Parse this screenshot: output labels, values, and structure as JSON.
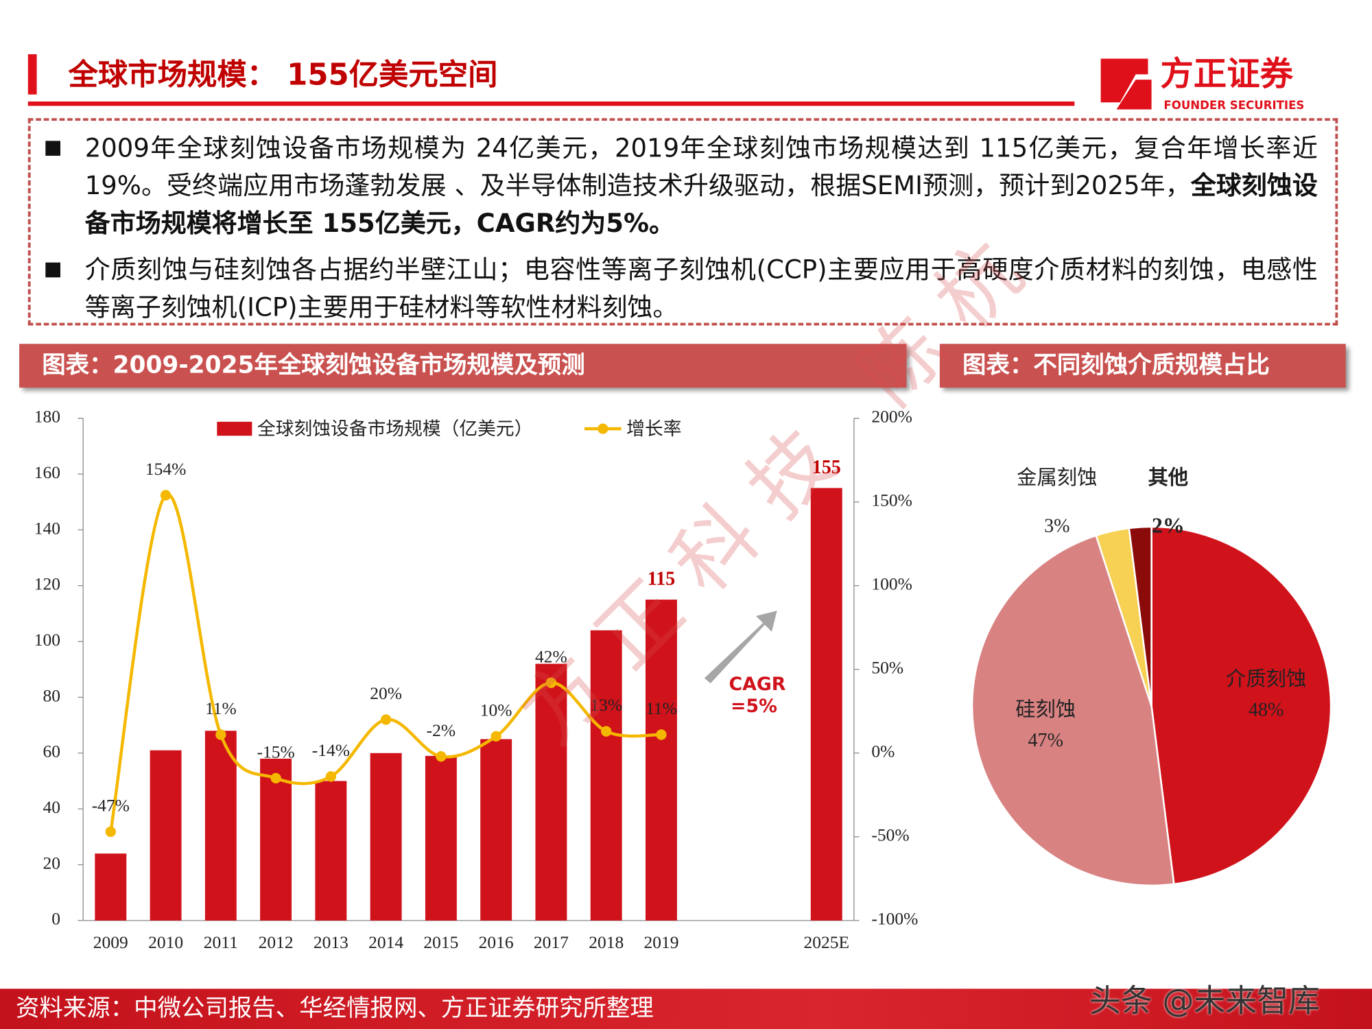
{
  "header": {
    "title": "全球市场规模： 155亿美元空间",
    "logo": "方正证券",
    "logo_en": "FOUNDER SECURITIES"
  },
  "bullets": [
    {
      "text": "2009年全球刻蚀设备市场规模为 24亿美元，2019年全球刻蚀市场规模达到 115亿美元，复合年增长率近19%。受终端应用市场蓬勃发展 、及半导体制造技术升级驱动，根据SEMI预测，预计到2025年，",
      "bold": "全球刻蚀设备市场规模将增长至 155亿美元，CAGR约为5%。"
    },
    {
      "text": "介质刻蚀与硅刻蚀各占据约半壁江山；电容性等离子刻蚀机(CCP)主要应用于高硬度介质材料的刻蚀，电感性等离子刻蚀机(ICP)主要用于硅材料等软性材料刻蚀。"
    }
  ],
  "chart_data": [
    {
      "type": "bar",
      "title": "图表：2009-2025年全球刻蚀设备市场规模及预测",
      "categories": [
        "2009",
        "2010",
        "2011",
        "2012",
        "2013",
        "2014",
        "2015",
        "2016",
        "2017",
        "2018",
        "2019",
        null,
        null,
        "2025E"
      ],
      "series": [
        {
          "name": "全球刻蚀设备市场规模（亿美元）",
          "type": "bar",
          "color": "#d0121b",
          "values": [
            24,
            61,
            68,
            58,
            50,
            60,
            59,
            65,
            92,
            104,
            115,
            null,
            null,
            155
          ],
          "value_labels": [
            null,
            null,
            null,
            null,
            null,
            null,
            null,
            null,
            null,
            null,
            "115",
            null,
            null,
            "155"
          ]
        },
        {
          "name": "增长率",
          "type": "line",
          "color": "#f5b800",
          "axis": "y2",
          "values": [
            -47,
            154,
            11,
            -15,
            -14,
            20,
            -2,
            10,
            42,
            13,
            11,
            null,
            null,
            null
          ],
          "value_labels": [
            "-47%",
            "154%",
            "11%",
            "-15%",
            "-14%",
            "20%",
            "-2%",
            "10%",
            "42%",
            "13%",
            "11%",
            null,
            null,
            null
          ]
        }
      ],
      "ylim": [
        0,
        180
      ],
      "yticks": [
        0,
        20,
        40,
        60,
        80,
        100,
        120,
        140,
        160,
        180
      ],
      "y2lim": [
        -100,
        200
      ],
      "y2ticks": [
        {
          "value": -100,
          "label": "-100%"
        },
        {
          "value": -50,
          "label": "-50%"
        },
        {
          "value": 0,
          "label": "0%"
        },
        {
          "value": 50,
          "label": "50%"
        },
        {
          "value": 100,
          "label": "100%"
        },
        {
          "value": 150,
          "label": "150%"
        },
        {
          "value": 200,
          "label": "200%"
        }
      ],
      "annotation": [
        "CAGR",
        "=5%"
      ],
      "legend": "top"
    },
    {
      "type": "pie",
      "title": "图表：不同刻蚀介质规模占比",
      "categories": [
        "介质刻蚀",
        "硅刻蚀",
        "金属刻蚀",
        "其他"
      ],
      "values": [
        48,
        47,
        3,
        2
      ],
      "value_labels": [
        "48%",
        "47%",
        "3%",
        "2%"
      ],
      "colors": [
        "#d0121b",
        "#d98282",
        "#f7d154",
        "#8b0a0a"
      ]
    }
  ],
  "footer": {
    "source": "资料来源：中微公司报告、华经情报网、方正证券研究所整理"
  },
  "watermarks": [
    "方正科技 陈杭",
    "头条 @未来智库"
  ]
}
